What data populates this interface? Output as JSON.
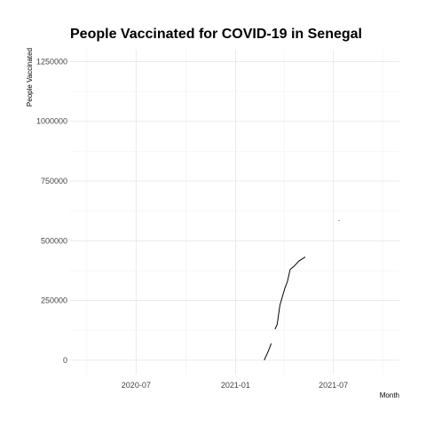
{
  "chart_data": {
    "type": "line",
    "title": "People Vaccinated for COVID-19 in Senegal",
    "xlabel": "Month",
    "ylabel": "People Vaccinated",
    "xlim": [
      "2020-03-01",
      "2021-10-31"
    ],
    "ylim": [
      -60000,
      1300000
    ],
    "x_ticks": [
      {
        "date": "2020-07-01",
        "label": "2020-07"
      },
      {
        "date": "2021-01-01",
        "label": "2021-01"
      },
      {
        "date": "2021-07-01",
        "label": "2021-07"
      }
    ],
    "y_ticks": [
      {
        "value": 0,
        "label": "0"
      },
      {
        "value": 250000,
        "label": "250000"
      },
      {
        "value": 500000,
        "label": "500000"
      },
      {
        "value": 750000,
        "label": "750000"
      },
      {
        "value": 1000000,
        "label": "1000000"
      },
      {
        "value": 1250000,
        "label": "1250000"
      }
    ],
    "grid": true,
    "legend": "none",
    "series": [
      {
        "color": "#000000",
        "segments": [
          [
            [
              "2021-02-23",
              0
            ],
            [
              "2021-03-03",
              40000
            ],
            [
              "2021-03-08",
              70000
            ]
          ],
          [
            [
              "2021-03-15",
              130000
            ],
            [
              "2021-03-19",
              150000
            ],
            [
              "2021-03-24",
              230000
            ],
            [
              "2021-04-02",
              300000
            ],
            [
              "2021-04-07",
              330000
            ],
            [
              "2021-04-12",
              380000
            ],
            [
              "2021-04-20",
              395000
            ],
            [
              "2021-04-28",
              415000
            ],
            [
              "2021-05-05",
              425000
            ],
            [
              "2021-05-10",
              432000
            ]
          ],
          [
            [
              "2021-07-11",
              584000
            ],
            [
              "2021-07-12",
              585000
            ]
          ]
        ]
      }
    ]
  }
}
